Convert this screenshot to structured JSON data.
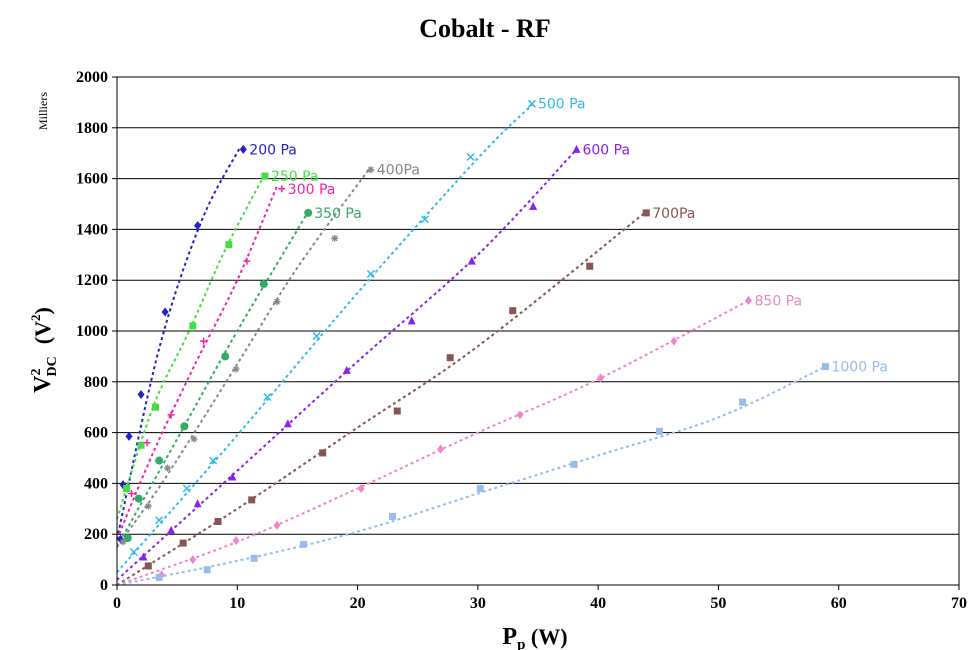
{
  "chart_data": {
    "type": "scatter",
    "title": "Cobalt - RF",
    "y_unit_note": "Milliers",
    "xlabel": {
      "main": "P",
      "sub": "p",
      "unit": " (W)"
    },
    "ylabel": {
      "main": "V",
      "sup": "2",
      "sub": "DC",
      "unit": "(V",
      "unit_sup": "2",
      "unit_close": ")"
    },
    "xlim": [
      0,
      70
    ],
    "ylim": [
      0,
      2000
    ],
    "x_ticks": [
      0,
      10,
      20,
      30,
      40,
      50,
      60,
      70
    ],
    "y_ticks": [
      0,
      200,
      400,
      600,
      800,
      1000,
      1200,
      1400,
      1600,
      1800,
      2000
    ],
    "grid": "horizontal",
    "series": [
      {
        "name": "200 Pa",
        "color": "#2222cc",
        "marker": "diamond",
        "points": [
          [
            0.3,
            180
          ],
          [
            0.5,
            395
          ],
          [
            1.0,
            585
          ],
          [
            2.0,
            750
          ],
          [
            4.0,
            1075
          ],
          [
            6.7,
            1415
          ],
          [
            10.5,
            1715
          ]
        ],
        "trend": [
          [
            0,
            180
          ],
          [
            3.5,
            930
          ],
          [
            7,
            1430
          ],
          [
            10.2,
            1720
          ]
        ]
      },
      {
        "name": "250 Pa",
        "color": "#44dd44",
        "marker": "square",
        "points": [
          [
            0.8,
            380
          ],
          [
            2.0,
            550
          ],
          [
            3.2,
            700
          ],
          [
            6.3,
            1020
          ],
          [
            9.3,
            1340
          ],
          [
            12.3,
            1610
          ]
        ],
        "trend": [
          [
            0,
            260
          ],
          [
            3,
            700
          ],
          [
            6,
            1000
          ],
          [
            9,
            1320
          ],
          [
            12.2,
            1610
          ]
        ]
      },
      {
        "name": "300 Pa",
        "color": "#ee22aa",
        "marker": "plus",
        "points": [
          [
            1.2,
            360
          ],
          [
            2.5,
            560
          ],
          [
            4.5,
            670
          ],
          [
            7.2,
            960
          ],
          [
            10.8,
            1275
          ],
          [
            13.7,
            1560
          ]
        ],
        "trend": [
          [
            0,
            180
          ],
          [
            3,
            520
          ],
          [
            6.5,
            870
          ],
          [
            10,
            1200
          ],
          [
            13.3,
            1570
          ]
        ]
      },
      {
        "name": "350 Pa",
        "color": "#33aa66",
        "marker": "circle",
        "points": [
          [
            0.9,
            185
          ],
          [
            1.8,
            340
          ],
          [
            3.5,
            490
          ],
          [
            5.6,
            625
          ],
          [
            9.0,
            900
          ],
          [
            12.2,
            1185
          ],
          [
            15.9,
            1465
          ]
        ],
        "trend": [
          [
            0,
            150
          ],
          [
            2,
            320
          ],
          [
            6,
            660
          ],
          [
            10,
            1000
          ],
          [
            15.9,
            1470
          ]
        ]
      },
      {
        "name": "400Pa",
        "color": "#888888",
        "marker": "asterisk",
        "points": [
          [
            0.5,
            170
          ],
          [
            2.6,
            310
          ],
          [
            4.2,
            460
          ],
          [
            6.4,
            575
          ],
          [
            9.9,
            850
          ],
          [
            13.3,
            1115
          ],
          [
            18.1,
            1365
          ],
          [
            21.1,
            1635
          ]
        ],
        "trend": [
          [
            0,
            150
          ],
          [
            4,
            420
          ],
          [
            10,
            870
          ],
          [
            15,
            1250
          ],
          [
            21,
            1640
          ]
        ]
      },
      {
        "name": "500 Pa",
        "color": "#33bbee",
        "marker": "x",
        "points": [
          [
            1.4,
            130
          ],
          [
            3.5,
            255
          ],
          [
            5.8,
            380
          ],
          [
            8.0,
            490
          ],
          [
            12.5,
            740
          ],
          [
            16.6,
            980
          ],
          [
            21.1,
            1225
          ],
          [
            25.6,
            1440
          ],
          [
            29.4,
            1685
          ],
          [
            34.5,
            1895
          ]
        ],
        "trend": [
          [
            0,
            50
          ],
          [
            10,
            590
          ],
          [
            20,
            1150
          ],
          [
            30,
            1680
          ],
          [
            34.5,
            1890
          ]
        ]
      },
      {
        "name": "600 Pa",
        "color": "#8822ee",
        "marker": "triangle",
        "points": [
          [
            2.2,
            110
          ],
          [
            4.5,
            215
          ],
          [
            6.7,
            320
          ],
          [
            9.6,
            425
          ],
          [
            14.2,
            635
          ],
          [
            19.1,
            845
          ],
          [
            24.5,
            1040
          ],
          [
            29.5,
            1275
          ],
          [
            34.6,
            1490
          ],
          [
            38.2,
            1715
          ]
        ],
        "trend": [
          [
            0,
            20
          ],
          [
            10,
            450
          ],
          [
            20,
            880
          ],
          [
            30,
            1300
          ],
          [
            38.2,
            1715
          ]
        ]
      },
      {
        "name": "700Pa",
        "color": "#885555",
        "marker": "square",
        "points": [
          [
            2.6,
            75
          ],
          [
            5.5,
            165
          ],
          [
            8.4,
            250
          ],
          [
            11.2,
            335
          ],
          [
            17.1,
            520
          ],
          [
            23.3,
            685
          ],
          [
            27.7,
            895
          ],
          [
            32.9,
            1080
          ],
          [
            39.3,
            1255
          ],
          [
            44.0,
            1465
          ]
        ],
        "trend": [
          [
            0,
            0
          ],
          [
            10,
            300
          ],
          [
            20,
            620
          ],
          [
            30,
            940
          ],
          [
            44,
            1470
          ]
        ]
      },
      {
        "name": "850 Pa",
        "color": "#ee88cc",
        "marker": "diamond",
        "points": [
          [
            3.7,
            40
          ],
          [
            6.3,
            100
          ],
          [
            9.9,
            175
          ],
          [
            13.3,
            235
          ],
          [
            20.3,
            380
          ],
          [
            26.9,
            535
          ],
          [
            33.5,
            670
          ],
          [
            40.2,
            815
          ],
          [
            46.3,
            960
          ],
          [
            52.5,
            1120
          ]
        ],
        "trend": [
          [
            0,
            0
          ],
          [
            10,
            170
          ],
          [
            20,
            380
          ],
          [
            30,
            600
          ],
          [
            40,
            810
          ],
          [
            52.5,
            1120
          ]
        ]
      },
      {
        "name": "1000 Pa",
        "color": "#99bbee",
        "marker": "square",
        "points": [
          [
            3.5,
            30
          ],
          [
            7.5,
            60
          ],
          [
            11.4,
            105
          ],
          [
            15.5,
            160
          ],
          [
            22.9,
            270
          ],
          [
            30.2,
            380
          ],
          [
            38.0,
            475
          ],
          [
            45.1,
            605
          ],
          [
            52.0,
            720
          ],
          [
            58.9,
            860
          ]
        ],
        "trend": [
          [
            0,
            0
          ],
          [
            10,
            95
          ],
          [
            20,
            210
          ],
          [
            30,
            360
          ],
          [
            40,
            510
          ],
          [
            50,
            660
          ],
          [
            58.9,
            860
          ]
        ]
      }
    ]
  }
}
